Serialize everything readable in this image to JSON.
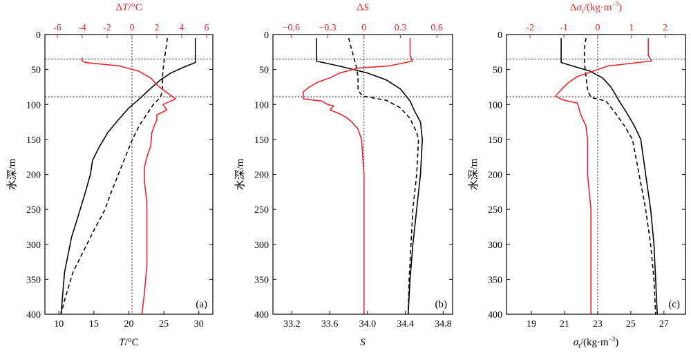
{
  "colors": {
    "black": "#000000",
    "red": "#e8262b"
  },
  "chart_data": [
    {
      "type": "line",
      "panel_label": "(a)",
      "ylabel": "水深/m",
      "bottom_axis": {
        "label_italic": "T",
        "label_rest": "/°C",
        "ticks": [
          10,
          15,
          20,
          25,
          30
        ],
        "range": [
          8,
          32
        ]
      },
      "top_axis": {
        "label_prefix": "Δ",
        "label_italic": "T",
        "label_rest": "/°C",
        "ticks": [
          -6,
          -4,
          -2,
          0,
          2,
          4,
          6
        ],
        "range": [
          -7,
          6.5
        ]
      },
      "yaxis": {
        "ticks": [
          0,
          50,
          100,
          150,
          200,
          250,
          300,
          350,
          400
        ],
        "range": [
          0,
          400
        ],
        "inverted": true
      },
      "hlines": [
        35,
        89
      ],
      "vline_top_axis": 0,
      "series": [
        {
          "axis": "bottom",
          "color": "black",
          "dash": false,
          "points": [
            [
              29.5,
              5
            ],
            [
              29.5,
              40
            ],
            [
              28,
              46
            ],
            [
              26,
              55
            ],
            [
              24.5,
              65
            ],
            [
              23,
              78
            ],
            [
              21.5,
              92
            ],
            [
              20,
              105
            ],
            [
              18.5,
              122
            ],
            [
              17,
              140
            ],
            [
              15.8,
              160
            ],
            [
              14.8,
              180
            ],
            [
              14.5,
              200
            ],
            [
              13.8,
              225
            ],
            [
              12.8,
              258
            ],
            [
              11.8,
              290
            ],
            [
              10.8,
              340
            ],
            [
              10.3,
              400
            ]
          ]
        },
        {
          "axis": "bottom",
          "color": "black",
          "dash": true,
          "points": [
            [
              25.5,
              5
            ],
            [
              25.3,
              20
            ],
            [
              25,
              40
            ],
            [
              24.8,
              60
            ],
            [
              24.8,
              80
            ],
            [
              24.5,
              90
            ],
            [
              23.5,
              100
            ],
            [
              22.5,
              115
            ],
            [
              21.5,
              130
            ],
            [
              20.5,
              150
            ],
            [
              19.5,
              175
            ],
            [
              18.5,
              200
            ],
            [
              17.5,
              225
            ],
            [
              16.5,
              252
            ],
            [
              15,
              280
            ],
            [
              13.5,
              310
            ],
            [
              12,
              340
            ],
            [
              10.8,
              380
            ],
            [
              10.3,
              400
            ]
          ]
        },
        {
          "axis": "top",
          "color": "red",
          "dash": false,
          "points": [
            [
              -4,
              33
            ],
            [
              -4,
              38
            ],
            [
              -3.7,
              40
            ],
            [
              -1,
              45
            ],
            [
              0.5,
              52
            ],
            [
              1.5,
              62
            ],
            [
              2.2,
              75
            ],
            [
              2.8,
              83
            ],
            [
              3.5,
              92
            ],
            [
              2.5,
              100
            ],
            [
              2.8,
              108
            ],
            [
              2,
              115
            ],
            [
              2,
              122
            ],
            [
              1.8,
              130
            ],
            [
              1.6,
              140
            ],
            [
              1.5,
              160
            ],
            [
              1.2,
              175
            ],
            [
              1,
              190
            ],
            [
              1,
              210
            ],
            [
              1.2,
              240
            ],
            [
              1.2,
              280
            ],
            [
              1.2,
              330
            ],
            [
              1,
              370
            ],
            [
              0.8,
              400
            ]
          ]
        }
      ]
    },
    {
      "type": "line",
      "panel_label": "(b)",
      "ylabel": "水深/m",
      "bottom_axis": {
        "label_italic": "S",
        "label_rest": "",
        "ticks": [
          "33.2",
          "33.6",
          "34.0",
          "34.4",
          "34.8"
        ],
        "range": [
          33.0,
          34.9
        ]
      },
      "top_axis": {
        "label_prefix": "Δ",
        "label_italic": "S",
        "label_rest": "",
        "ticks": [
          "−0.6",
          "−0.3",
          "0",
          "0.3",
          "0.6"
        ],
        "range": [
          -0.75,
          0.73
        ]
      },
      "yaxis": {
        "ticks": [
          0,
          50,
          100,
          150,
          200,
          250,
          300,
          350,
          400
        ],
        "range": [
          0,
          400
        ],
        "inverted": true
      },
      "hlines": [
        35,
        89
      ],
      "vline_top_axis": 0,
      "series": [
        {
          "axis": "bottom",
          "color": "black",
          "dash": false,
          "points": [
            [
              33.46,
              5
            ],
            [
              33.46,
              38
            ],
            [
              33.7,
              45
            ],
            [
              34.0,
              55
            ],
            [
              34.2,
              65
            ],
            [
              34.35,
              78
            ],
            [
              34.45,
              95
            ],
            [
              34.5,
              110
            ],
            [
              34.56,
              125
            ],
            [
              34.58,
              150
            ],
            [
              34.56,
              200
            ],
            [
              34.52,
              250
            ],
            [
              34.48,
              300
            ],
            [
              34.45,
              350
            ],
            [
              34.43,
              400
            ]
          ]
        },
        {
          "axis": "bottom",
          "color": "black",
          "dash": true,
          "points": [
            [
              33.8,
              5
            ],
            [
              33.85,
              30
            ],
            [
              33.88,
              45
            ],
            [
              33.9,
              60
            ],
            [
              33.9,
              80
            ],
            [
              33.95,
              88
            ],
            [
              34.2,
              94
            ],
            [
              34.35,
              105
            ],
            [
              34.45,
              120
            ],
            [
              34.52,
              140
            ],
            [
              34.54,
              150
            ],
            [
              34.52,
              200
            ],
            [
              34.48,
              250
            ],
            [
              34.46,
              300
            ],
            [
              34.44,
              350
            ],
            [
              34.43,
              400
            ]
          ]
        },
        {
          "axis": "top",
          "color": "red",
          "dash": false,
          "points": [
            [
              0.38,
              5
            ],
            [
              0.38,
              30
            ],
            [
              0.4,
              38
            ],
            [
              0.2,
              45
            ],
            [
              -0.05,
              48
            ],
            [
              -0.2,
              55
            ],
            [
              -0.28,
              62
            ],
            [
              -0.38,
              68
            ],
            [
              -0.45,
              75
            ],
            [
              -0.5,
              82
            ],
            [
              -0.5,
              92
            ],
            [
              -0.35,
              95
            ],
            [
              -0.3,
              100
            ],
            [
              -0.25,
              102
            ],
            [
              -0.28,
              108
            ],
            [
              -0.22,
              112
            ],
            [
              -0.15,
              118
            ],
            [
              -0.1,
              125
            ],
            [
              -0.05,
              135
            ],
            [
              -0.02,
              150
            ],
            [
              0,
              200
            ],
            [
              0,
              250
            ],
            [
              0,
              300
            ],
            [
              0,
              350
            ],
            [
              0,
              400
            ]
          ]
        }
      ]
    },
    {
      "type": "line",
      "panel_label": "(c)",
      "ylabel": "水深/m",
      "bottom_axis": {
        "label_italic": "σ",
        "label_sub": "t",
        "label_rest": "/(kg·m",
        "label_sup": "−3",
        "label_end": ")",
        "ticks": [
          19,
          21,
          23,
          25,
          27
        ],
        "range": [
          17.5,
          28.3
        ]
      },
      "top_axis": {
        "label_prefix": "Δ",
        "label_italic": "σ",
        "label_sub": "t",
        "label_rest": "/(kg·m",
        "label_sup": "−3",
        "label_end": ")",
        "ticks": [
          -2,
          -1,
          0,
          1,
          2
        ],
        "range": [
          -2.7,
          2.6
        ]
      },
      "yaxis": {
        "ticks": [
          0,
          50,
          100,
          150,
          200,
          250,
          300,
          350,
          400
        ],
        "range": [
          0,
          400
        ],
        "inverted": true
      },
      "hlines": [
        35,
        89
      ],
      "vline_top_axis": 0,
      "series": [
        {
          "axis": "bottom",
          "color": "black",
          "dash": false,
          "points": [
            [
              20.8,
              5
            ],
            [
              20.8,
              40
            ],
            [
              21.5,
              45
            ],
            [
              22.5,
              52
            ],
            [
              23.3,
              62
            ],
            [
              23.8,
              75
            ],
            [
              24.3,
              95
            ],
            [
              24.7,
              110
            ],
            [
              25.2,
              130
            ],
            [
              25.6,
              150
            ],
            [
              25.9,
              200
            ],
            [
              26.2,
              250
            ],
            [
              26.4,
              300
            ],
            [
              26.5,
              350
            ],
            [
              26.6,
              400
            ]
          ]
        },
        {
          "axis": "bottom",
          "color": "black",
          "dash": true,
          "points": [
            [
              22.3,
              5
            ],
            [
              22.2,
              20
            ],
            [
              22.2,
              40
            ],
            [
              22.3,
              60
            ],
            [
              22.4,
              80
            ],
            [
              22.6,
              90
            ],
            [
              23.5,
              95
            ],
            [
              24.0,
              110
            ],
            [
              24.6,
              130
            ],
            [
              25.1,
              150
            ],
            [
              25.5,
              200
            ],
            [
              25.9,
              250
            ],
            [
              26.2,
              300
            ],
            [
              26.4,
              350
            ],
            [
              26.5,
              400
            ]
          ]
        },
        {
          "axis": "top",
          "color": "red",
          "dash": false,
          "points": [
            [
              1.5,
              5
            ],
            [
              1.5,
              30
            ],
            [
              1.6,
              38
            ],
            [
              1.2,
              40
            ],
            [
              0.3,
              45
            ],
            [
              -0.3,
              55
            ],
            [
              -0.6,
              60
            ],
            [
              -0.9,
              70
            ],
            [
              -1.1,
              80
            ],
            [
              -1.25,
              88
            ],
            [
              -1.1,
              92
            ],
            [
              -0.9,
              95
            ],
            [
              -0.6,
              98
            ],
            [
              -0.5,
              115
            ],
            [
              -0.35,
              130
            ],
            [
              -0.3,
              150
            ],
            [
              -0.3,
              200
            ],
            [
              -0.2,
              250
            ],
            [
              -0.2,
              300
            ],
            [
              -0.2,
              350
            ],
            [
              -0.2,
              400
            ]
          ]
        }
      ]
    }
  ]
}
